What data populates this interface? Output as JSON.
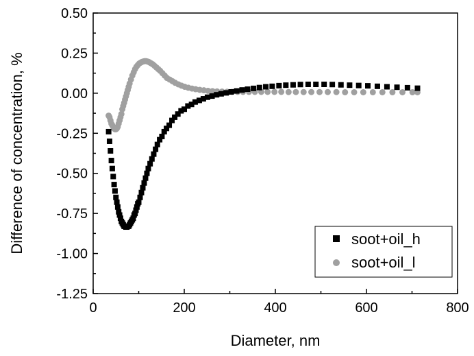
{
  "chart_data": {
    "type": "scatter",
    "title": "",
    "xlabel": "Diameter, nm",
    "ylabel": "Difference of concentration, %",
    "xlim": [
      0,
      800
    ],
    "ylim": [
      -1.25,
      0.5
    ],
    "x_ticks": [
      0,
      200,
      400,
      600,
      800
    ],
    "y_ticks": [
      -1.25,
      -1.0,
      -0.75,
      -0.5,
      -0.25,
      0.0,
      0.25,
      0.5
    ],
    "x_tick_labels": [
      "0",
      "200",
      "400",
      "600",
      "800"
    ],
    "y_tick_labels": [
      "-1.25",
      "-1.00",
      "-0.75",
      "-0.50",
      "-0.25",
      "0.00",
      "0.25",
      "0.50"
    ],
    "grid": false,
    "legend_position": "bottom-right",
    "series": [
      {
        "name": "soot+oil_h",
        "marker": "square",
        "color": "#000000",
        "x": [
          34,
          36,
          38,
          40,
          42,
          44,
          46,
          48,
          50,
          52,
          54,
          56,
          58,
          60,
          62,
          64,
          66,
          68,
          70,
          72,
          74,
          76,
          78,
          80,
          82,
          84,
          86,
          88,
          90,
          92,
          94,
          96,
          98,
          100,
          103,
          106,
          109,
          112,
          115,
          118,
          121,
          125,
          129,
          133,
          137,
          141,
          146,
          151,
          156,
          161,
          167,
          173,
          179,
          186,
          193,
          200,
          208,
          216,
          224,
          233,
          242,
          251,
          261,
          271,
          281,
          292,
          303,
          315,
          327,
          339,
          352,
          365,
          379,
          393,
          408,
          423,
          439,
          455,
          472,
          489,
          507,
          525,
          544,
          563,
          583,
          603,
          624,
          645,
          667,
          690,
          712
        ],
        "y": [
          -0.24,
          -0.3,
          -0.36,
          -0.42,
          -0.47,
          -0.52,
          -0.57,
          -0.61,
          -0.65,
          -0.68,
          -0.71,
          -0.74,
          -0.76,
          -0.78,
          -0.8,
          -0.81,
          -0.82,
          -0.83,
          -0.83,
          -0.835,
          -0.835,
          -0.83,
          -0.83,
          -0.82,
          -0.81,
          -0.8,
          -0.79,
          -0.78,
          -0.76,
          -0.75,
          -0.73,
          -0.71,
          -0.69,
          -0.68,
          -0.65,
          -0.62,
          -0.59,
          -0.56,
          -0.53,
          -0.5,
          -0.47,
          -0.44,
          -0.41,
          -0.38,
          -0.35,
          -0.32,
          -0.29,
          -0.27,
          -0.24,
          -0.22,
          -0.2,
          -0.17,
          -0.15,
          -0.13,
          -0.11,
          -0.1,
          -0.08,
          -0.07,
          -0.055,
          -0.045,
          -0.035,
          -0.025,
          -0.018,
          -0.01,
          -0.004,
          0.002,
          0.008,
          0.014,
          0.02,
          0.025,
          0.03,
          0.035,
          0.04,
          0.043,
          0.047,
          0.05,
          0.052,
          0.054,
          0.055,
          0.055,
          0.055,
          0.054,
          0.052,
          0.05,
          0.048,
          0.046,
          0.043,
          0.04,
          0.037,
          0.034,
          0.031
        ]
      },
      {
        "name": "soot+oil_l",
        "marker": "circle",
        "color": "#a0a0a0",
        "x": [
          34,
          36,
          38,
          40,
          42,
          44,
          46,
          48,
          50,
          52,
          54,
          56,
          58,
          60,
          62,
          64,
          66,
          68,
          70,
          72,
          74,
          76,
          78,
          80,
          83,
          86,
          89,
          92,
          95,
          98,
          101,
          104,
          107,
          110,
          113,
          116,
          119,
          122,
          125,
          128,
          131,
          135,
          139,
          143,
          147,
          152,
          157,
          162,
          168,
          174,
          180,
          187,
          194,
          201,
          209,
          217,
          225,
          234,
          243,
          252,
          262,
          272,
          283,
          294,
          305,
          317,
          329,
          342,
          355,
          369,
          383,
          398,
          413,
          429,
          445,
          462,
          479,
          497,
          515,
          534,
          553,
          573,
          593,
          614,
          635,
          657,
          679,
          701,
          712
        ],
        "y": [
          -0.14,
          -0.15,
          -0.17,
          -0.19,
          -0.2,
          -0.21,
          -0.22,
          -0.225,
          -0.225,
          -0.22,
          -0.21,
          -0.19,
          -0.17,
          -0.15,
          -0.13,
          -0.1,
          -0.08,
          -0.06,
          -0.04,
          -0.02,
          0.0,
          0.02,
          0.04,
          0.06,
          0.085,
          0.11,
          0.13,
          0.15,
          0.165,
          0.175,
          0.185,
          0.19,
          0.195,
          0.198,
          0.2,
          0.2,
          0.198,
          0.195,
          0.19,
          0.185,
          0.18,
          0.17,
          0.16,
          0.15,
          0.14,
          0.125,
          0.11,
          0.095,
          0.085,
          0.075,
          0.065,
          0.055,
          0.047,
          0.04,
          0.034,
          0.029,
          0.025,
          0.021,
          0.018,
          0.015,
          0.013,
          0.011,
          0.01,
          0.009,
          0.008,
          0.008,
          0.008,
          0.008,
          0.008,
          0.008,
          0.008,
          0.008,
          0.008,
          0.007,
          0.007,
          0.007,
          0.007,
          0.007,
          0.007,
          0.007,
          0.006,
          0.006,
          0.006,
          0.006,
          0.006,
          0.006,
          0.006,
          0.006,
          0.006
        ]
      }
    ]
  }
}
